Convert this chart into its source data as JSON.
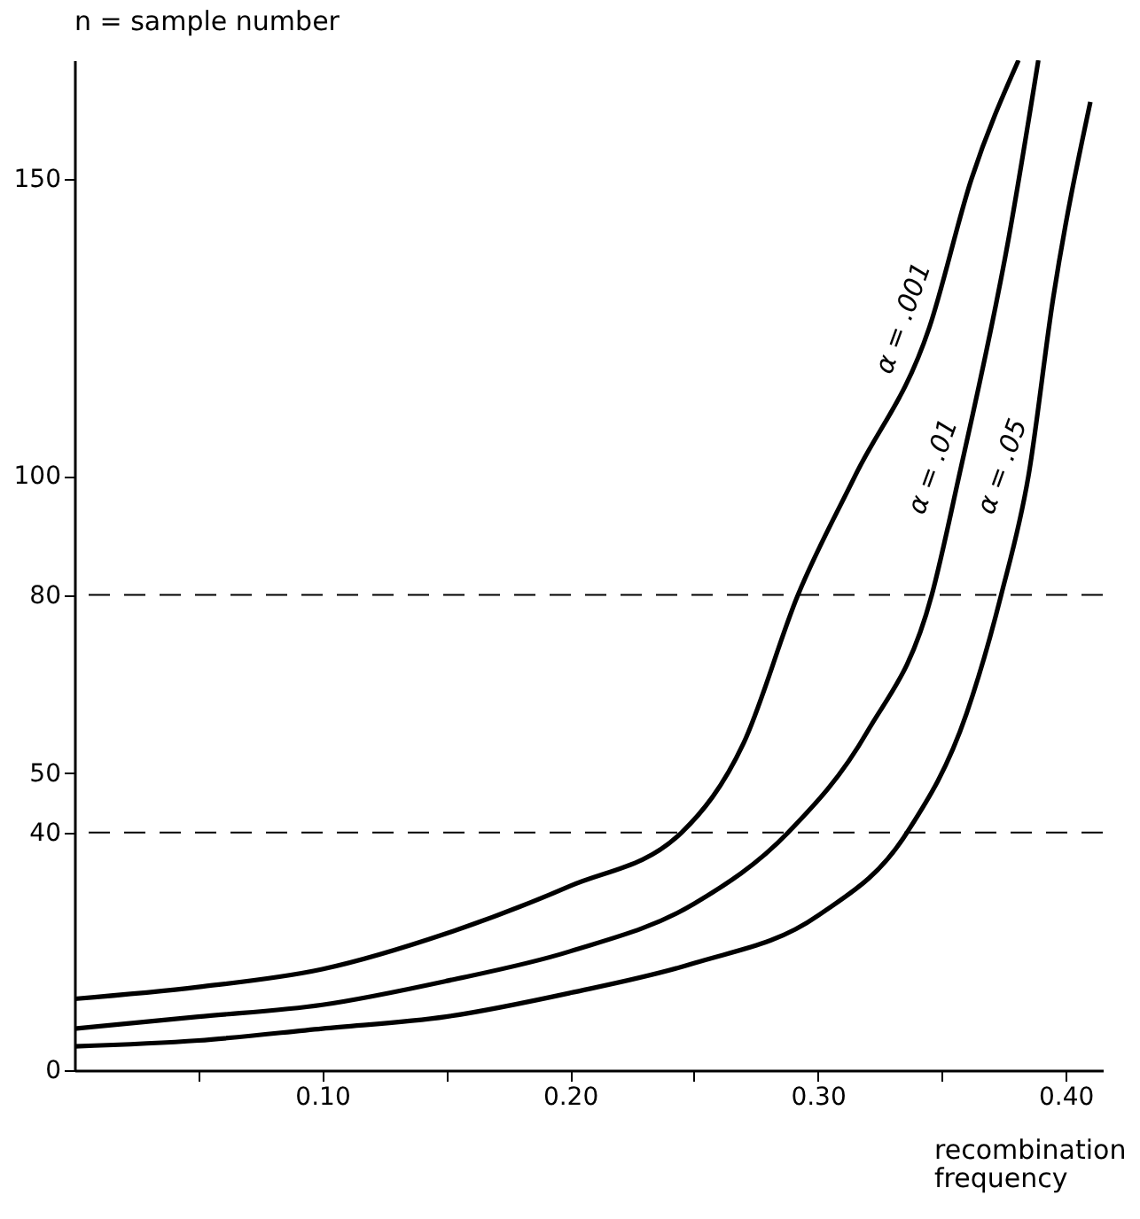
{
  "chart_data": {
    "type": "line",
    "xlabel": "recombination frequency",
    "ylabel": "n = sample number",
    "xlim": [
      0,
      0.415
    ],
    "ylim": [
      0,
      170
    ],
    "xticks": [
      {
        "value": 0.05,
        "label": null
      },
      {
        "value": 0.1,
        "label": "0.10"
      },
      {
        "value": 0.15,
        "label": null
      },
      {
        "value": 0.2,
        "label": "0.20"
      },
      {
        "value": 0.25,
        "label": null
      },
      {
        "value": 0.3,
        "label": "0.30"
      },
      {
        "value": 0.35,
        "label": null
      },
      {
        "value": 0.4,
        "label": "0.40"
      }
    ],
    "yticks": [
      0,
      40,
      50,
      80,
      100,
      150
    ],
    "grid": false,
    "legend": false,
    "marker": "none",
    "line_style": "solid",
    "ref_lines": [
      {
        "axis": "y",
        "value": 40,
        "color": "#000000",
        "line_style": "dashed"
      },
      {
        "axis": "y",
        "value": 80,
        "color": "#000000",
        "line_style": "dashed"
      }
    ],
    "series": [
      {
        "name": "α = .001",
        "color": "#000000",
        "x": [
          0,
          0.05,
          0.1,
          0.15,
          0.2,
          0.245,
          0.27,
          0.292,
          0.315,
          0.345,
          0.362,
          0.381
        ],
        "values": [
          12,
          14,
          17,
          23,
          31,
          40,
          55,
          80,
          100,
          125,
          150,
          170
        ]
      },
      {
        "name": "α = .01",
        "color": "#000000",
        "x": [
          0,
          0.05,
          0.1,
          0.15,
          0.2,
          0.25,
          0.288,
          0.32,
          0.346,
          0.357,
          0.377,
          0.389
        ],
        "values": [
          7,
          9,
          11,
          15,
          20,
          28,
          40,
          57,
          80,
          100,
          140,
          170
        ]
      },
      {
        "name": "α = .05",
        "color": "#000000",
        "x": [
          0,
          0.05,
          0.1,
          0.15,
          0.2,
          0.25,
          0.3,
          0.336,
          0.36,
          0.374,
          0.385,
          0.395,
          0.41
        ],
        "values": [
          4,
          5,
          7,
          9,
          13,
          18,
          26,
          40,
          60,
          80,
          100,
          130,
          163
        ]
      }
    ]
  }
}
